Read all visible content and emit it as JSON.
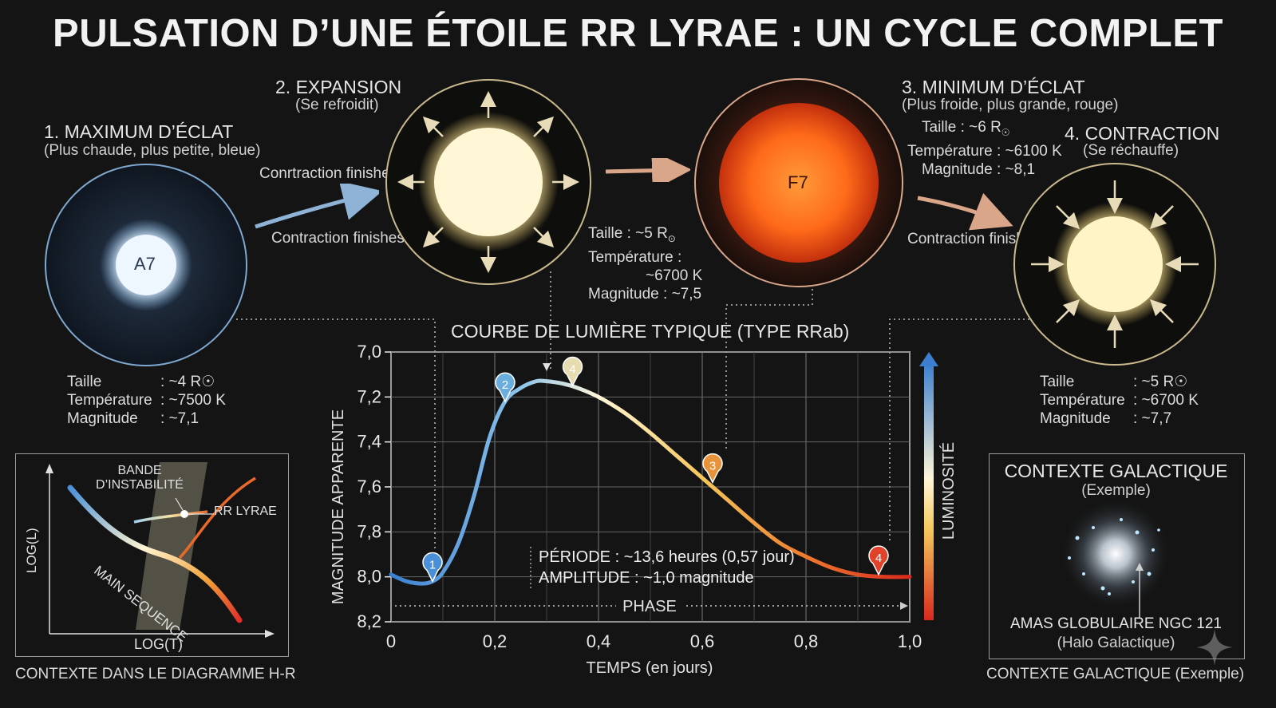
{
  "title": "PULSATION D’UNE ÉTOILE RR LYRAE : UN CYCLE COMPLET",
  "stages": [
    {
      "heading": "1. MAXIMUM D’ÉCLAT",
      "sub": "(Plus chaude, plus petite, bleue)",
      "star_label": "A7",
      "stats": [
        [
          "Taille",
          ": ~4 R☉"
        ],
        [
          "Température",
          ": ~7500 K"
        ],
        [
          "Magnitude",
          ": ~7,1"
        ]
      ]
    },
    {
      "heading": "2. EXPANSION",
      "sub": "(Se refroidit)",
      "stats": [
        [
          "Taille : ~5 R",
          "⊙"
        ],
        [
          "Température :",
          ""
        ],
        [
          "~6700 K",
          ""
        ],
        [
          "Magnitude : ~7,5",
          ""
        ]
      ]
    },
    {
      "heading": "3. MINIMUM D’ÉCLAT",
      "sub": "(Plus froide, plus grande, rouge)",
      "star_label": "F7",
      "stats": [
        [
          "Taille : ~6 R",
          "☉"
        ],
        [
          "Température : ~6100 K",
          ""
        ],
        [
          "Magnitude : ~8,1",
          ""
        ]
      ]
    },
    {
      "heading": "4. CONTRACTION",
      "sub": "(Se réchauffe)",
      "stats": [
        [
          "Taille",
          ": ~5 R☉"
        ],
        [
          "Température",
          ": ~6700 K"
        ],
        [
          "Magnitude",
          ": ~7,7"
        ]
      ]
    }
  ],
  "arrow_labels": {
    "a1": "Conrtraction finishes",
    "a2": "Contraction finishes",
    "a3": "Contraction finishes"
  },
  "chart_data": {
    "type": "line",
    "title": "COURBE DE LUMIÈRE TYPIQUE (TYPE RRab)",
    "xlabel": "TEMPS (en jours)",
    "ylabel": "MAGNITUDE APPARENTE",
    "xlim": [
      0,
      1.0
    ],
    "ylim": [
      8.2,
      7.0
    ],
    "y_inverted": true,
    "x_ticks": [
      "0",
      "0,2",
      "0,4",
      "0,6",
      "0,8",
      "1,0"
    ],
    "y_ticks": [
      "7,0",
      "7,2",
      "7,4",
      "7,6",
      "7,8",
      "8,0",
      "8,2"
    ],
    "grid": true,
    "x": [
      0,
      0.03,
      0.06,
      0.08,
      0.1,
      0.13,
      0.16,
      0.19,
      0.22,
      0.25,
      0.28,
      0.3,
      0.33,
      0.36,
      0.4,
      0.45,
      0.5,
      0.55,
      0.6,
      0.65,
      0.7,
      0.75,
      0.8,
      0.85,
      0.9,
      0.95,
      1.0
    ],
    "y": [
      7.99,
      8.02,
      8.03,
      8.02,
      7.98,
      7.85,
      7.64,
      7.38,
      7.22,
      7.16,
      7.13,
      7.13,
      7.14,
      7.16,
      7.2,
      7.27,
      7.36,
      7.46,
      7.56,
      7.66,
      7.76,
      7.85,
      7.91,
      7.96,
      7.99,
      8.0,
      8.0
    ],
    "markers": [
      {
        "label": "1",
        "x": 0.08,
        "y": 8.02,
        "color": "#4a90d9"
      },
      {
        "label": "2",
        "x": 0.22,
        "y": 7.22,
        "color": "#6aaee0"
      },
      {
        "label": "4",
        "x": 0.35,
        "y": 7.15,
        "color": "#e6dcb0"
      },
      {
        "label": "3",
        "x": 0.62,
        "y": 7.58,
        "color": "#e8923a"
      },
      {
        "label": "4",
        "x": 0.94,
        "y": 7.99,
        "color": "#e0432a"
      }
    ],
    "period_text": "PÉRIODE : ~13,6 heures (0,57 jour)",
    "amplitude_text": "AMPLITUDE : ~1,0 magnitude",
    "phase_text": "PHASE",
    "luminosity_label": "LUMINOSITÉ"
  },
  "hr_panel": {
    "caption": "CONTEXTE DANS LE DIAGRAMME H-R",
    "instability_label": "BANDE D’INSTABILITÉ",
    "rr_label": "RR LYRAE",
    "main_sequence": "MAIN SEQUENCE",
    "xlabel": "LOG(T)",
    "ylabel": "LOG(L)"
  },
  "galactic_panel": {
    "title": "CONTEXTE GALACTIQUE",
    "sub": "(Exemple)",
    "cluster": "AMAS GLOBULAIRE NGC 121",
    "cluster_sub": "(Halo Galactique)",
    "caption": "CONTEXTE GALACTIQUE (Exemple)"
  },
  "colors": {
    "bg": "#141414",
    "hot": "#4a90d9",
    "cool": "#e0432a",
    "warm": "#f6d26a"
  }
}
